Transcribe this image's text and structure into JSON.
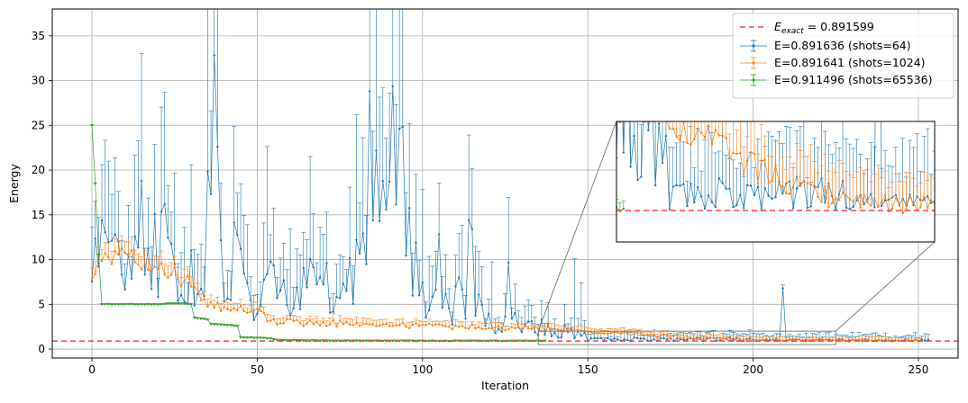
{
  "chart_data": {
    "type": "line",
    "xlabel": "Iteration",
    "ylabel": "Energy",
    "xlim": [
      -12,
      262
    ],
    "ylim": [
      -1,
      38
    ],
    "xticks": [
      0,
      50,
      100,
      150,
      200,
      250
    ],
    "yticks": [
      0,
      5,
      10,
      15,
      20,
      25,
      30,
      35
    ],
    "grid": true,
    "legend_position": "top-right",
    "reference_line": {
      "label_main": "E",
      "label_sub": "exact",
      "label_rest": " = 0.891599",
      "value": 0.891599,
      "color": "#ff0000",
      "style": "dashed"
    },
    "series": [
      {
        "name": "E=0.891636 (shots=64)",
        "color": "#1f77b4",
        "x_start": 0,
        "x_end": 253,
        "description": "high-variance noisy series; error bars reach up to ~36 in the first 100 iterations, settling near 1 after iteration 150",
        "sample_points": [
          [
            0,
            9.5
          ],
          [
            5,
            14
          ],
          [
            10,
            8
          ],
          [
            15,
            12
          ],
          [
            20,
            7
          ],
          [
            23,
            19
          ],
          [
            26,
            6
          ],
          [
            30,
            9
          ],
          [
            33,
            5
          ],
          [
            37,
            23.7
          ],
          [
            40,
            5
          ],
          [
            45,
            8
          ],
          [
            50,
            4
          ],
          [
            55,
            8
          ],
          [
            60,
            5
          ],
          [
            65,
            9
          ],
          [
            70,
            6
          ],
          [
            75,
            5
          ],
          [
            80,
            9
          ],
          [
            85,
            20
          ],
          [
            88,
            8
          ],
          [
            92,
            25.6
          ],
          [
            95,
            9
          ],
          [
            100,
            6
          ],
          [
            105,
            5
          ],
          [
            110,
            4
          ],
          [
            115,
            6
          ],
          [
            120,
            3
          ],
          [
            125,
            3
          ],
          [
            130,
            3
          ],
          [
            135,
            2.5
          ],
          [
            140,
            2
          ],
          [
            145,
            2
          ],
          [
            150,
            1.5
          ],
          [
            155,
            1.2
          ],
          [
            160,
            1
          ],
          [
            170,
            1
          ],
          [
            180,
            0.95
          ],
          [
            190,
            0.9
          ],
          [
            200,
            0.9
          ],
          [
            209,
            6.8
          ],
          [
            215,
            0.9
          ],
          [
            230,
            0.9
          ],
          [
            240,
            0.9
          ],
          [
            253,
            0.89
          ]
        ]
      },
      {
        "name": "E=0.891641 (shots=1024)",
        "color": "#ff7f0e",
        "x_start": 0,
        "x_end": 250,
        "description": "moderate-variance series decaying from ~10 to ~0.9",
        "sample_points": [
          [
            0,
            8.5
          ],
          [
            5,
            10
          ],
          [
            10,
            10.3
          ],
          [
            15,
            9.5
          ],
          [
            20,
            9
          ],
          [
            25,
            8.5
          ],
          [
            30,
            7
          ],
          [
            35,
            5
          ],
          [
            40,
            4.6
          ],
          [
            45,
            4.4
          ],
          [
            50,
            4.2
          ],
          [
            55,
            3
          ],
          [
            60,
            3
          ],
          [
            70,
            2.9
          ],
          [
            80,
            2.8
          ],
          [
            90,
            2.7
          ],
          [
            100,
            2.6
          ],
          [
            110,
            2.5
          ],
          [
            120,
            2.4
          ],
          [
            130,
            2.3
          ],
          [
            140,
            2.2
          ],
          [
            150,
            2.0
          ],
          [
            160,
            1.8
          ],
          [
            170,
            1.5
          ],
          [
            180,
            1.3
          ],
          [
            190,
            1.1
          ],
          [
            200,
            1.0
          ],
          [
            210,
            1.0
          ],
          [
            220,
            0.95
          ],
          [
            230,
            0.93
          ],
          [
            240,
            0.92
          ],
          [
            250,
            0.9
          ]
        ]
      },
      {
        "name": "E=0.911496 (shots=65536)",
        "color": "#2ca02c",
        "x_start": 0,
        "x_end": 137,
        "description": "low-variance stepwise series converging to ~0.91",
        "sample_points": [
          [
            0,
            25
          ],
          [
            1,
            18.5
          ],
          [
            2,
            10.5
          ],
          [
            3,
            5
          ],
          [
            10,
            5
          ],
          [
            20,
            5
          ],
          [
            25,
            5.1
          ],
          [
            30,
            5
          ],
          [
            31,
            3.5
          ],
          [
            35,
            3.3
          ],
          [
            36,
            2.8
          ],
          [
            40,
            2.7
          ],
          [
            44,
            2.6
          ],
          [
            45,
            1.3
          ],
          [
            50,
            1.25
          ],
          [
            54,
            1.2
          ],
          [
            56,
            1.0
          ],
          [
            65,
            0.95
          ],
          [
            80,
            0.92
          ],
          [
            100,
            0.91
          ],
          [
            120,
            0.91
          ],
          [
            137,
            0.91
          ]
        ]
      }
    ],
    "inset": {
      "description": "zoom of iterations ~135–225, energy ~0.5–2.0",
      "xlim": [
        135,
        225
      ],
      "ylim": [
        0.5,
        2.0
      ]
    }
  }
}
